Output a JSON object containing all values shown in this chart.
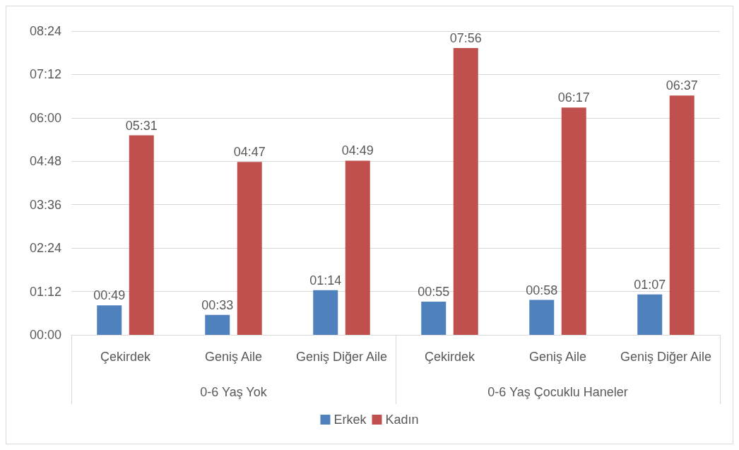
{
  "chart_data": {
    "type": "bar",
    "categories": [
      "Çekirdek",
      "Geniş Aile",
      "Geniş Diğer Aile",
      "Çekirdek",
      "Geniş Aile",
      "Geniş Diğer Aile"
    ],
    "annotations": [
      "0-6 Yaş Yok",
      "0-6 Yaş Çocuklu Haneler"
    ],
    "series": [
      {
        "name": "Erkek",
        "color": "#4f81bd",
        "values": [
          0.8167,
          0.55,
          1.2333,
          0.9167,
          0.9667,
          1.1167
        ],
        "value_labels": [
          "00:49",
          "00:33",
          "01:14",
          "00:55",
          "00:58",
          "01:07"
        ]
      },
      {
        "name": "Kadın",
        "color": "#c0504d",
        "values": [
          5.5167,
          4.7833,
          4.8167,
          7.9333,
          6.2833,
          6.6167
        ],
        "value_labels": [
          "05:31",
          "04:47",
          "04:49",
          "07:56",
          "06:17",
          "06:37"
        ]
      }
    ],
    "ylim": [
      0,
      8.4
    ],
    "yticks": [
      {
        "value": 0,
        "label": "00:00"
      },
      {
        "value": 1.2,
        "label": "01:12"
      },
      {
        "value": 2.4,
        "label": "02:24"
      },
      {
        "value": 3.6,
        "label": "03:36"
      },
      {
        "value": 4.8,
        "label": "04:48"
      },
      {
        "value": 6,
        "label": "06:00"
      },
      {
        "value": 7.2,
        "label": "07:12"
      },
      {
        "value": 8.4,
        "label": "08:24"
      }
    ],
    "grid": "y",
    "legend": "bottom"
  }
}
